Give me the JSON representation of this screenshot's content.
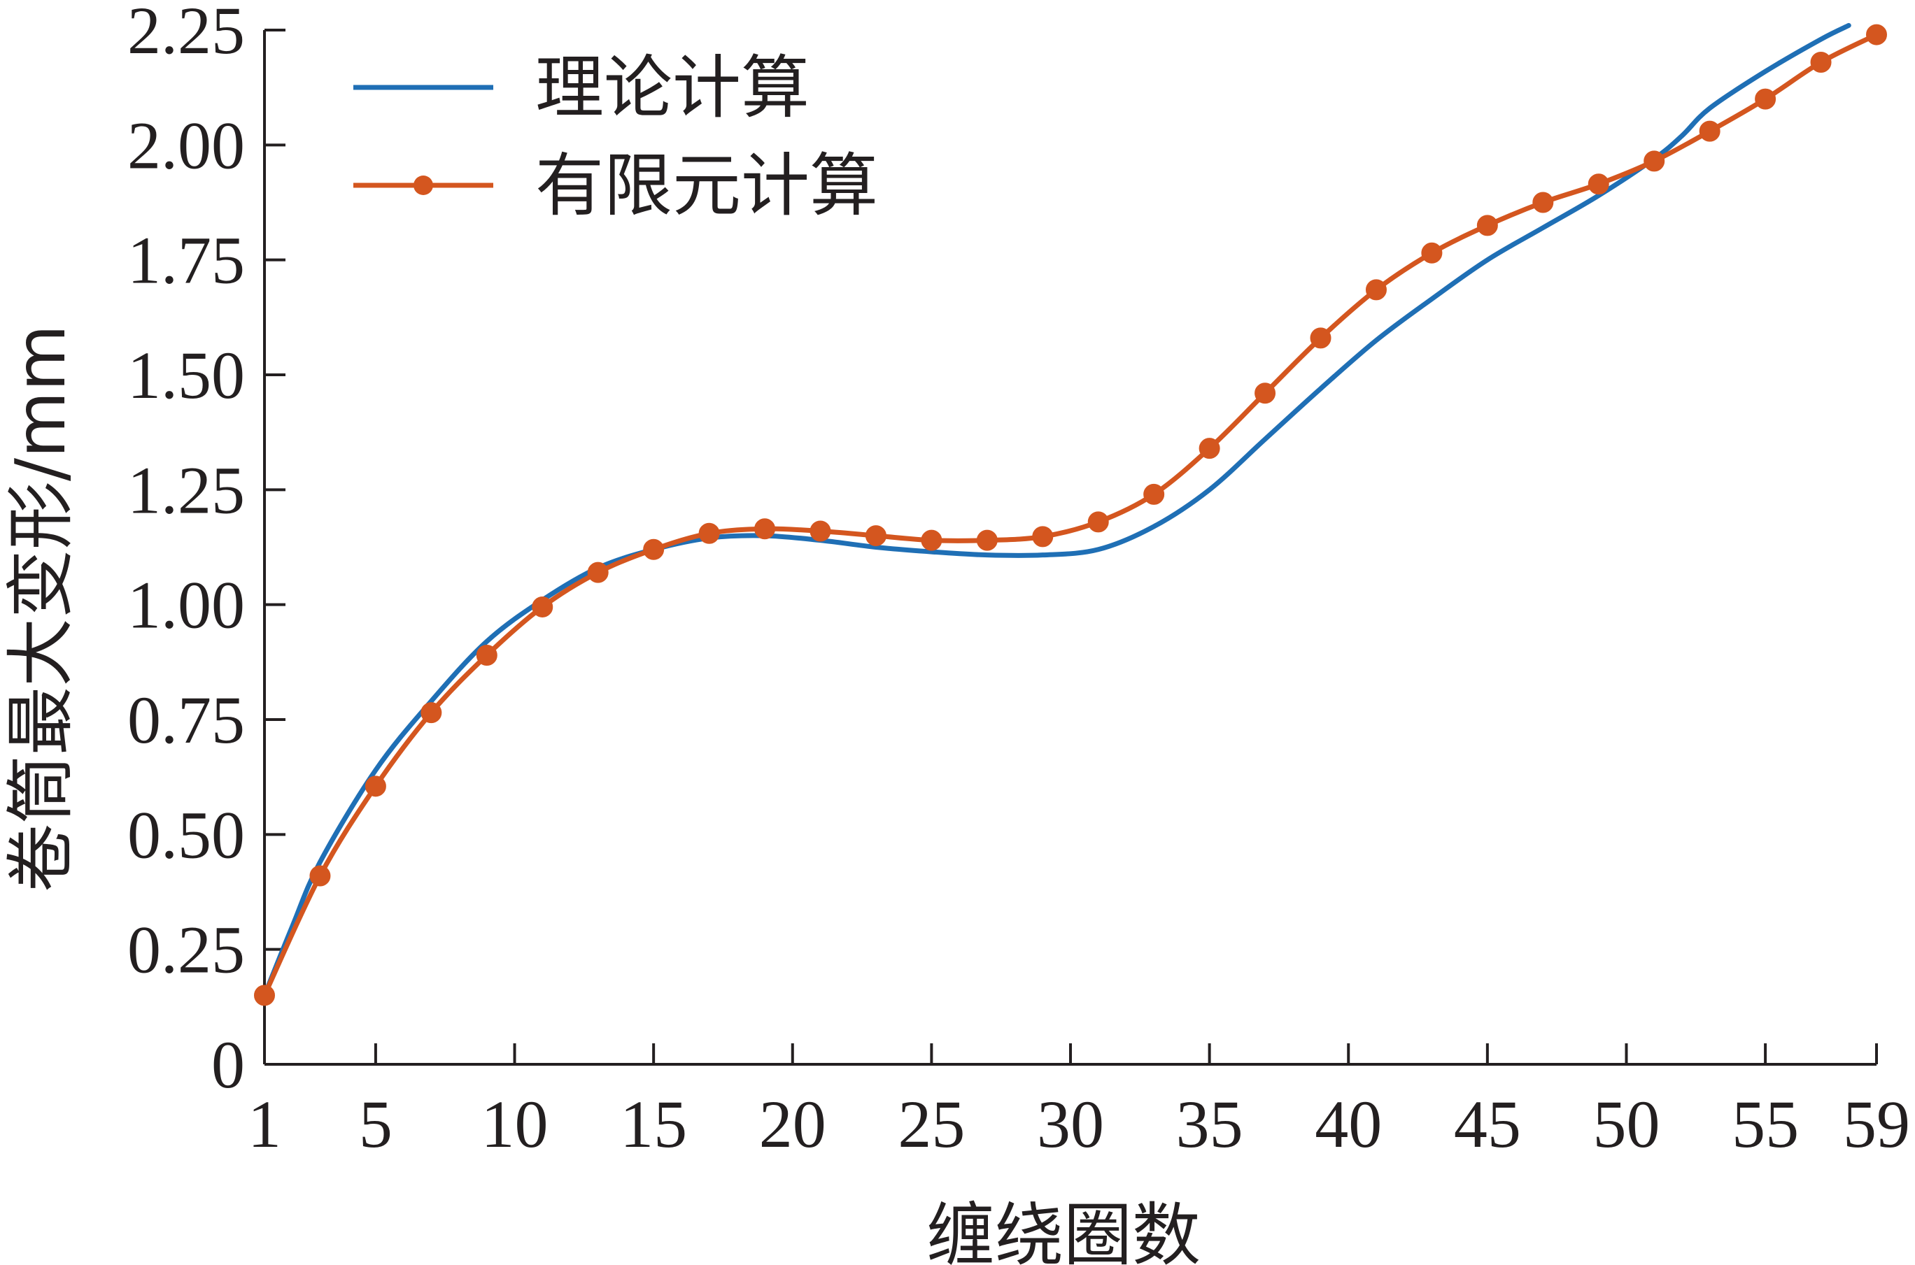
{
  "chart_data": {
    "type": "line",
    "title": "",
    "xlabel": "缠绕圈数",
    "ylabel": "卷筒最大变形/mm",
    "xlim": [
      1,
      59
    ],
    "ylim": [
      0,
      2.25
    ],
    "x_ticks": [
      1,
      5,
      10,
      15,
      20,
      25,
      30,
      35,
      40,
      45,
      50,
      55,
      59
    ],
    "x_tick_labels": [
      "1",
      "5",
      "10",
      "15",
      "20",
      "25",
      "30",
      "35",
      "40",
      "45",
      "50",
      "55",
      "59"
    ],
    "y_ticks": [
      0,
      0.25,
      0.5,
      0.75,
      1.0,
      1.25,
      1.5,
      1.75,
      2.0,
      2.25
    ],
    "y_tick_labels": [
      "0",
      "0.25",
      "0.50",
      "0.75",
      "1.00",
      "1.25",
      "1.50",
      "1.75",
      "2.00",
      "2.25"
    ],
    "grid": false,
    "legend_position": "top-left",
    "series": [
      {
        "name": "理论计算",
        "color": "#1f6fb5",
        "marker": "none",
        "x": [
          1,
          2,
          3,
          5,
          7,
          9,
          11,
          13,
          15,
          17,
          19,
          21,
          23,
          25,
          27,
          29,
          31,
          33,
          35,
          37,
          39,
          41,
          43,
          45,
          47,
          49,
          51,
          52,
          53,
          55,
          57,
          58
        ],
        "y": [
          0.15,
          0.3,
          0.44,
          0.64,
          0.79,
          0.92,
          1.01,
          1.08,
          1.12,
          1.145,
          1.15,
          1.14,
          1.125,
          1.115,
          1.108,
          1.108,
          1.12,
          1.17,
          1.25,
          1.36,
          1.47,
          1.575,
          1.665,
          1.75,
          1.82,
          1.89,
          1.97,
          2.02,
          2.08,
          2.16,
          2.23,
          2.26
        ]
      },
      {
        "name": "有限元计算",
        "color": "#d4561f",
        "marker": "circle",
        "x": [
          1,
          3,
          5,
          7,
          9,
          11,
          13,
          15,
          17,
          19,
          21,
          23,
          25,
          27,
          29,
          31,
          33,
          35,
          37,
          39,
          41,
          43,
          45,
          47,
          49,
          51,
          53,
          55,
          57,
          59
        ],
        "y": [
          0.15,
          0.41,
          0.605,
          0.765,
          0.89,
          0.995,
          1.07,
          1.12,
          1.155,
          1.165,
          1.16,
          1.15,
          1.14,
          1.14,
          1.148,
          1.18,
          1.24,
          1.34,
          1.46,
          1.58,
          1.685,
          1.765,
          1.825,
          1.875,
          1.915,
          1.965,
          2.03,
          2.1,
          2.18,
          2.24
        ]
      }
    ]
  }
}
